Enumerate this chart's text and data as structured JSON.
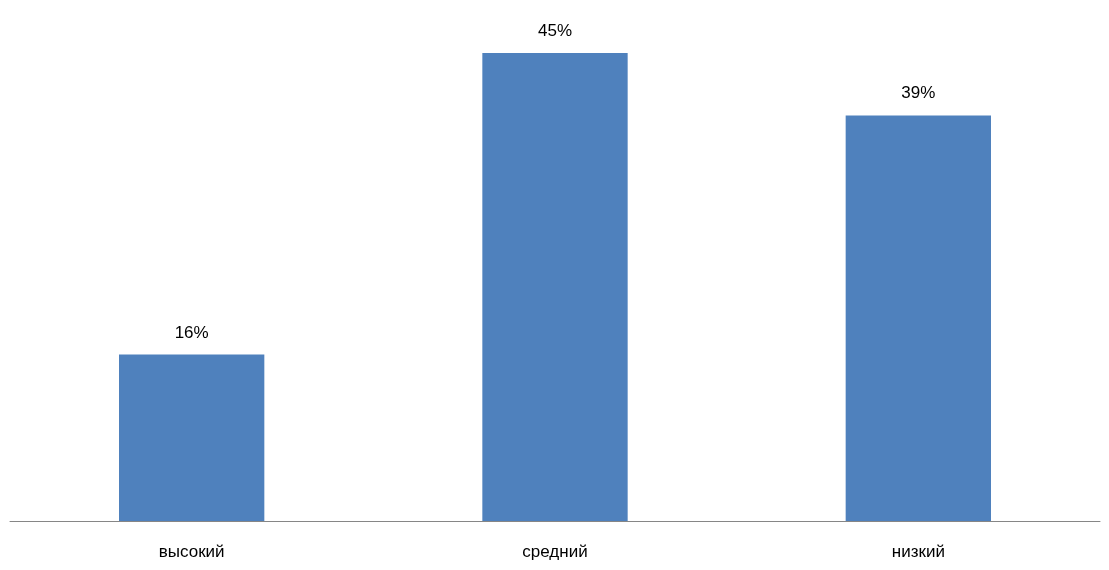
{
  "chart_data": {
    "type": "bar",
    "categories": [
      "высокий",
      "средний",
      "низкий"
    ],
    "values": [
      16,
      45,
      39
    ],
    "value_labels": [
      "16%",
      "45%",
      "39%"
    ],
    "color": "#4f81bd"
  }
}
